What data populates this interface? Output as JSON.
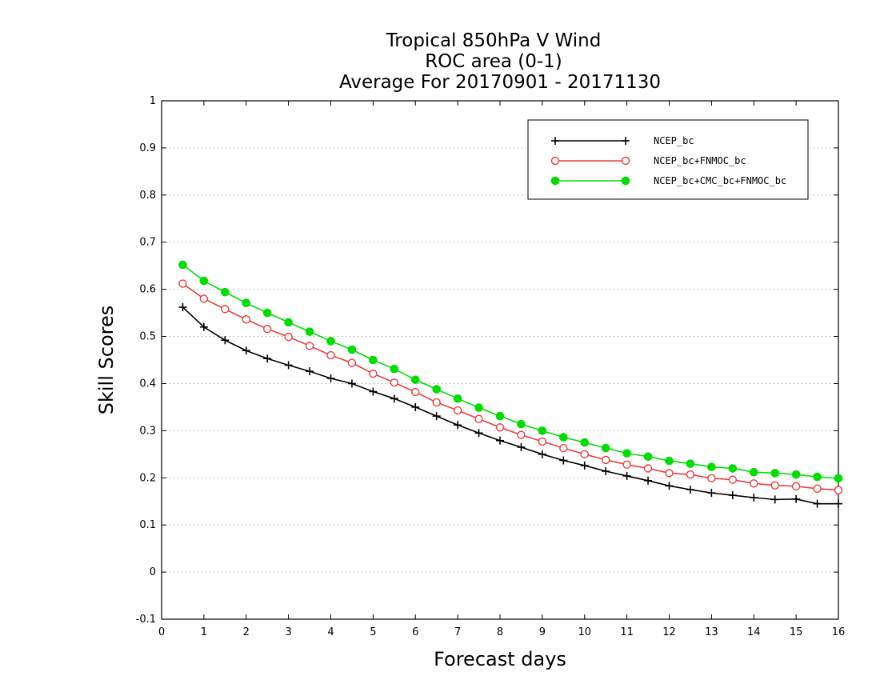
{
  "chart_data": {
    "type": "line",
    "title": [
      "Tropical 850hPa V Wind",
      "ROC area (0-1)",
      "Average For 20170901 - 20171130"
    ],
    "xlabel": "Forecast days",
    "ylabel": "Skill Scores",
    "xlim": [
      0,
      16
    ],
    "ylim": [
      -0.1,
      1
    ],
    "xticks": [
      "0",
      "1",
      "2",
      "3",
      "4",
      "5",
      "6",
      "7",
      "8",
      "9",
      "10",
      "11",
      "12",
      "13",
      "14",
      "15",
      "16"
    ],
    "yticks": [
      "-0.1",
      "0",
      "0.1",
      "0.2",
      "0.3",
      "0.4",
      "0.5",
      "0.6",
      "0.7",
      "0.8",
      "0.9",
      "1"
    ],
    "grid": "horizontal dotted",
    "legend_position": "top-right",
    "x": [
      0.5,
      1,
      1.5,
      2,
      2.5,
      3,
      3.5,
      4,
      4.5,
      5,
      5.5,
      6,
      6.5,
      7,
      7.5,
      8,
      8.5,
      9,
      9.5,
      10,
      10.5,
      11,
      11.5,
      12,
      12.5,
      13,
      13.5,
      14,
      14.5,
      15,
      15.5,
      16
    ],
    "series": [
      {
        "name": "NCEP_bc",
        "color": "#000000",
        "marker": "plus",
        "values": [
          0.562,
          0.52,
          0.492,
          0.47,
          0.453,
          0.439,
          0.426,
          0.411,
          0.4,
          0.383,
          0.368,
          0.35,
          0.331,
          0.312,
          0.295,
          0.279,
          0.265,
          0.25,
          0.237,
          0.226,
          0.214,
          0.204,
          0.194,
          0.183,
          0.175,
          0.168,
          0.163,
          0.158,
          0.154,
          0.155,
          0.145,
          0.145
        ]
      },
      {
        "name": "NCEP_bc+FNMOC_bc",
        "color": "#ee3b3b",
        "marker": "open-circle",
        "values": [
          0.612,
          0.58,
          0.558,
          0.536,
          0.516,
          0.499,
          0.48,
          0.46,
          0.444,
          0.421,
          0.402,
          0.382,
          0.36,
          0.343,
          0.325,
          0.307,
          0.291,
          0.277,
          0.263,
          0.25,
          0.238,
          0.228,
          0.22,
          0.21,
          0.207,
          0.199,
          0.196,
          0.188,
          0.184,
          0.182,
          0.177,
          0.174
        ]
      },
      {
        "name": "NCEP_bc+CMC_bc+FNMOC_bc",
        "color": "#00dd00",
        "marker": "filled-circle",
        "values": [
          0.652,
          0.618,
          0.594,
          0.571,
          0.55,
          0.53,
          0.51,
          0.49,
          0.472,
          0.45,
          0.431,
          0.408,
          0.388,
          0.368,
          0.349,
          0.331,
          0.314,
          0.3,
          0.286,
          0.275,
          0.263,
          0.252,
          0.245,
          0.236,
          0.23,
          0.223,
          0.22,
          0.212,
          0.21,
          0.207,
          0.202,
          0.199
        ]
      }
    ]
  }
}
